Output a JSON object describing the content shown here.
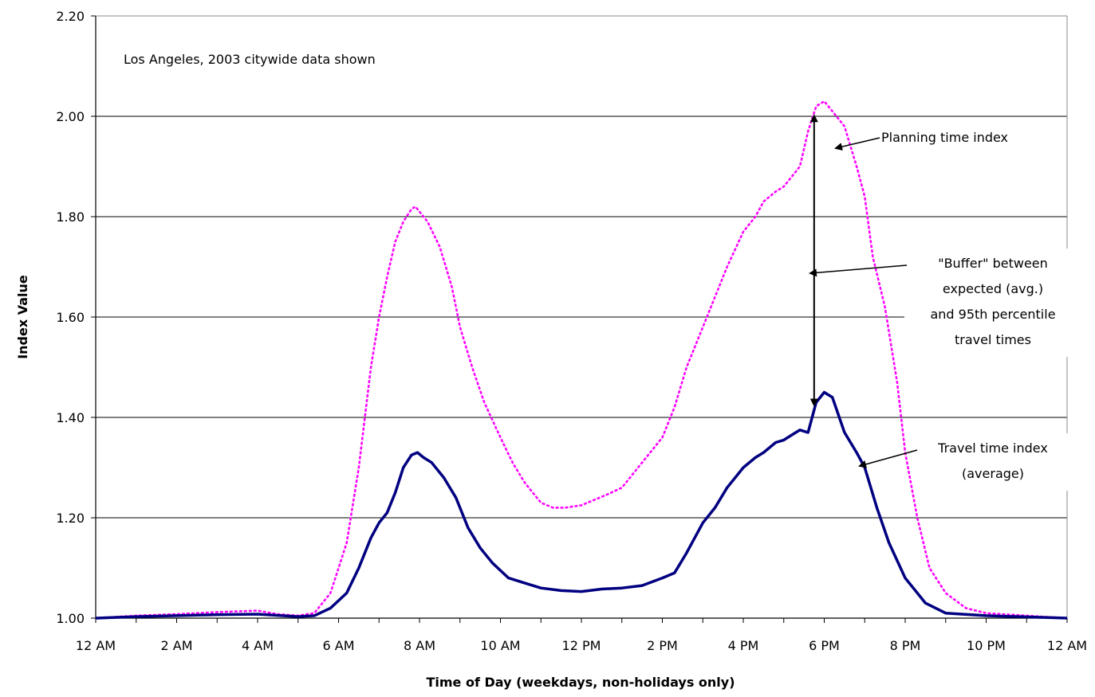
{
  "chart_data": {
    "type": "line",
    "annotation_top": "Los Angeles, 2003 citywide data shown",
    "xlabel": "Time of Day (weekdays, non-holidays only)",
    "ylabel": "Index Value",
    "x_tick_labels": [
      "12 AM",
      "2 AM",
      "4 AM",
      "6 AM",
      "8 AM",
      "10 AM",
      "12 PM",
      "2 PM",
      "4 PM",
      "6 PM",
      "8 PM",
      "10 PM",
      "12 AM"
    ],
    "y_tick_labels": [
      "1.00",
      "1.20",
      "1.40",
      "1.60",
      "1.80",
      "2.00",
      "2.20"
    ],
    "ylim": [
      1.0,
      2.2
    ],
    "xlim": [
      0,
      24
    ],
    "grid": "horizontal",
    "series": [
      {
        "name": "Planning time index",
        "color": "#ff00ff",
        "style": "dashed",
        "x": [
          0,
          1,
          2,
          3,
          4,
          4.5,
          5,
          5.4,
          5.8,
          6.2,
          6.5,
          6.8,
          7.0,
          7.2,
          7.4,
          7.6,
          7.8,
          7.9,
          8.0,
          8.2,
          8.5,
          8.8,
          9.0,
          9.3,
          9.6,
          10.0,
          10.3,
          10.6,
          11.0,
          11.3,
          11.6,
          12.0,
          12.3,
          12.6,
          13.0,
          13.3,
          13.6,
          14.0,
          14.3,
          14.6,
          15.0,
          15.3,
          15.6,
          16.0,
          16.3,
          16.5,
          16.8,
          17.0,
          17.2,
          17.4,
          17.6,
          17.8,
          18.0,
          18.2,
          18.5,
          18.8,
          19.0,
          19.2,
          19.5,
          19.8,
          20.0,
          20.3,
          20.6,
          21.0,
          21.5,
          22.0,
          23.0,
          24.0
        ],
        "y": [
          1.0,
          1.005,
          1.008,
          1.012,
          1.015,
          1.008,
          1.005,
          1.01,
          1.05,
          1.15,
          1.3,
          1.5,
          1.6,
          1.68,
          1.75,
          1.79,
          1.815,
          1.82,
          1.81,
          1.79,
          1.74,
          1.66,
          1.58,
          1.5,
          1.43,
          1.36,
          1.31,
          1.27,
          1.23,
          1.22,
          1.22,
          1.225,
          1.235,
          1.245,
          1.26,
          1.29,
          1.32,
          1.36,
          1.42,
          1.5,
          1.58,
          1.64,
          1.7,
          1.77,
          1.8,
          1.83,
          1.85,
          1.86,
          1.88,
          1.9,
          1.97,
          2.02,
          2.03,
          2.01,
          1.98,
          1.9,
          1.84,
          1.72,
          1.62,
          1.47,
          1.33,
          1.2,
          1.1,
          1.05,
          1.02,
          1.01,
          1.005,
          1.0
        ]
      },
      {
        "name": "Travel time index (average)",
        "color": "#000080",
        "style": "solid",
        "x": [
          0,
          1,
          2,
          3,
          4,
          5,
          5.4,
          5.8,
          6.2,
          6.5,
          6.8,
          7.0,
          7.2,
          7.4,
          7.6,
          7.8,
          7.95,
          8.1,
          8.3,
          8.6,
          8.9,
          9.2,
          9.5,
          9.8,
          10.2,
          10.6,
          11.0,
          11.5,
          12.0,
          12.5,
          13.0,
          13.5,
          14.0,
          14.3,
          14.6,
          15.0,
          15.3,
          15.6,
          16.0,
          16.3,
          16.5,
          16.8,
          17.0,
          17.2,
          17.4,
          17.6,
          17.8,
          18.0,
          18.2,
          18.5,
          18.8,
          19.0,
          19.3,
          19.6,
          20.0,
          20.5,
          21.0,
          22.0,
          24.0
        ],
        "y": [
          1.0,
          1.003,
          1.005,
          1.007,
          1.008,
          1.003,
          1.005,
          1.02,
          1.05,
          1.1,
          1.16,
          1.19,
          1.21,
          1.25,
          1.3,
          1.325,
          1.33,
          1.32,
          1.31,
          1.28,
          1.24,
          1.18,
          1.14,
          1.11,
          1.08,
          1.07,
          1.06,
          1.055,
          1.053,
          1.058,
          1.06,
          1.065,
          1.08,
          1.09,
          1.13,
          1.19,
          1.22,
          1.26,
          1.3,
          1.32,
          1.33,
          1.35,
          1.355,
          1.365,
          1.375,
          1.37,
          1.43,
          1.45,
          1.44,
          1.37,
          1.33,
          1.3,
          1.22,
          1.15,
          1.08,
          1.03,
          1.01,
          1.005,
          1.0
        ]
      }
    ],
    "callouts": [
      {
        "key": "pti",
        "lines": [
          "Planning time index"
        ]
      },
      {
        "key": "buffer",
        "lines": [
          "\"Buffer\" between",
          "expected (avg.)",
          "and 95th percentile",
          "travel times"
        ]
      },
      {
        "key": "tti",
        "lines": [
          "Travel time index",
          "(average)"
        ]
      }
    ]
  }
}
